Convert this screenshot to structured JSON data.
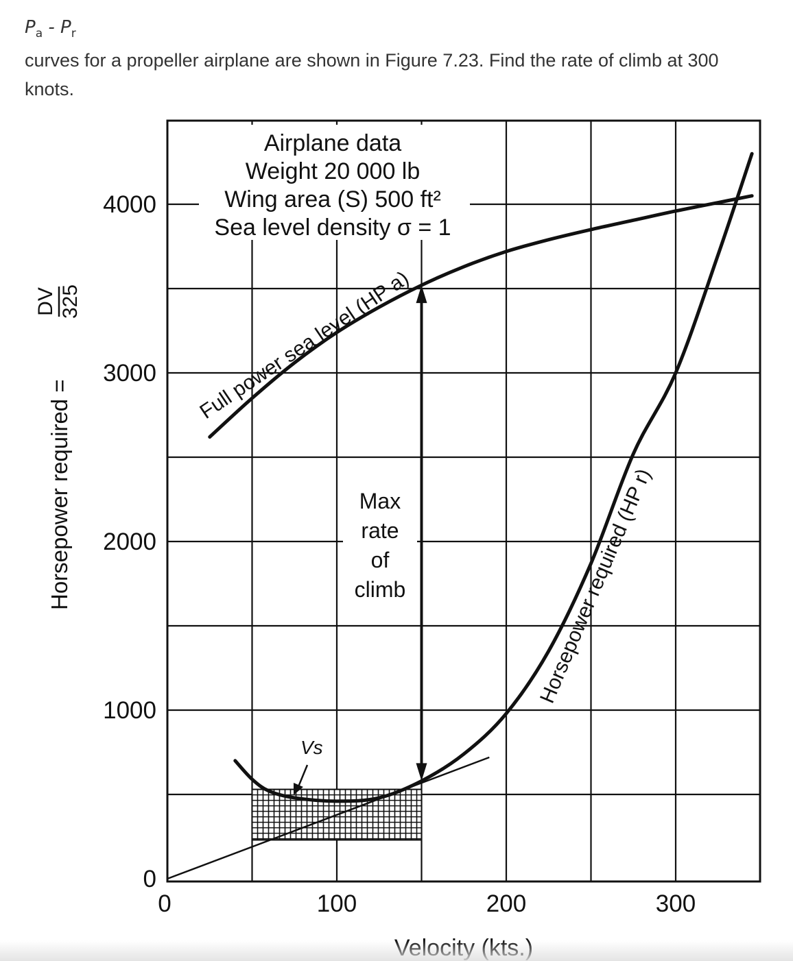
{
  "question": {
    "formula_p": "P",
    "formula_sub_a": "a",
    "formula_minus": " - ",
    "formula_sub_r": "r",
    "text": "curves for a propeller airplane are shown in Figure 7.23. Find the rate of climb at 300 knots."
  },
  "chart_data": {
    "type": "line",
    "xlabel": "Velocity (kts.)",
    "ylabel_prefix": "Horsepower required =",
    "ylabel_num": "DV",
    "ylabel_den": "325",
    "xlim": [
      0,
      350
    ],
    "ylim": [
      0,
      4400
    ],
    "x_ticks": [
      {
        "value": 0,
        "label": "0"
      },
      {
        "value": 100,
        "label": "100"
      },
      {
        "value": 200,
        "label": "200"
      },
      {
        "value": 300,
        "label": "300"
      }
    ],
    "y_ticks": [
      {
        "value": 0,
        "label": "0"
      },
      {
        "value": 1000,
        "label": "1000"
      },
      {
        "value": 2000,
        "label": "2000"
      },
      {
        "value": 3000,
        "label": "3000"
      },
      {
        "value": 4000,
        "label": "4000"
      }
    ],
    "grid": true,
    "grid_x_step": 50,
    "grid_y_step": 500,
    "series": [
      {
        "name": "Full power sea level (HPa)",
        "x": [
          25,
          50,
          75,
          100,
          125,
          150,
          175,
          200,
          225,
          250,
          275,
          300,
          325,
          345
        ],
        "y": [
          2620,
          2850,
          3060,
          3240,
          3390,
          3520,
          3630,
          3720,
          3790,
          3850,
          3905,
          3960,
          4010,
          4050
        ]
      },
      {
        "name": "Horsepower required (HPr)",
        "x": [
          40,
          50,
          60,
          75,
          100,
          125,
          150,
          175,
          200,
          225,
          250,
          275,
          300,
          325,
          345
        ],
        "y": [
          700,
          590,
          520,
          480,
          460,
          480,
          580,
          740,
          980,
          1350,
          1870,
          2520,
          3000,
          3700,
          4300
        ]
      }
    ],
    "tangent_line": {
      "x": [
        0,
        190
      ],
      "y": [
        0,
        720
      ]
    },
    "annotations": {
      "airplane_data_lines": [
        "Airplane data",
        "Weight 20 000 lb",
        "Wing area (S) 500 ft²",
        "Sea level density σ = 1"
      ],
      "max_rate_lines": [
        "Max",
        "rate",
        "of",
        "climb"
      ],
      "max_rate_arrow": {
        "x": 150,
        "y_from": 580,
        "y_to": 3520
      },
      "vs_label": "Vs",
      "hpa_curve_label": "Full power sea level (HP a)",
      "hpr_curve_label": "Horsepower required (HP r)"
    }
  }
}
